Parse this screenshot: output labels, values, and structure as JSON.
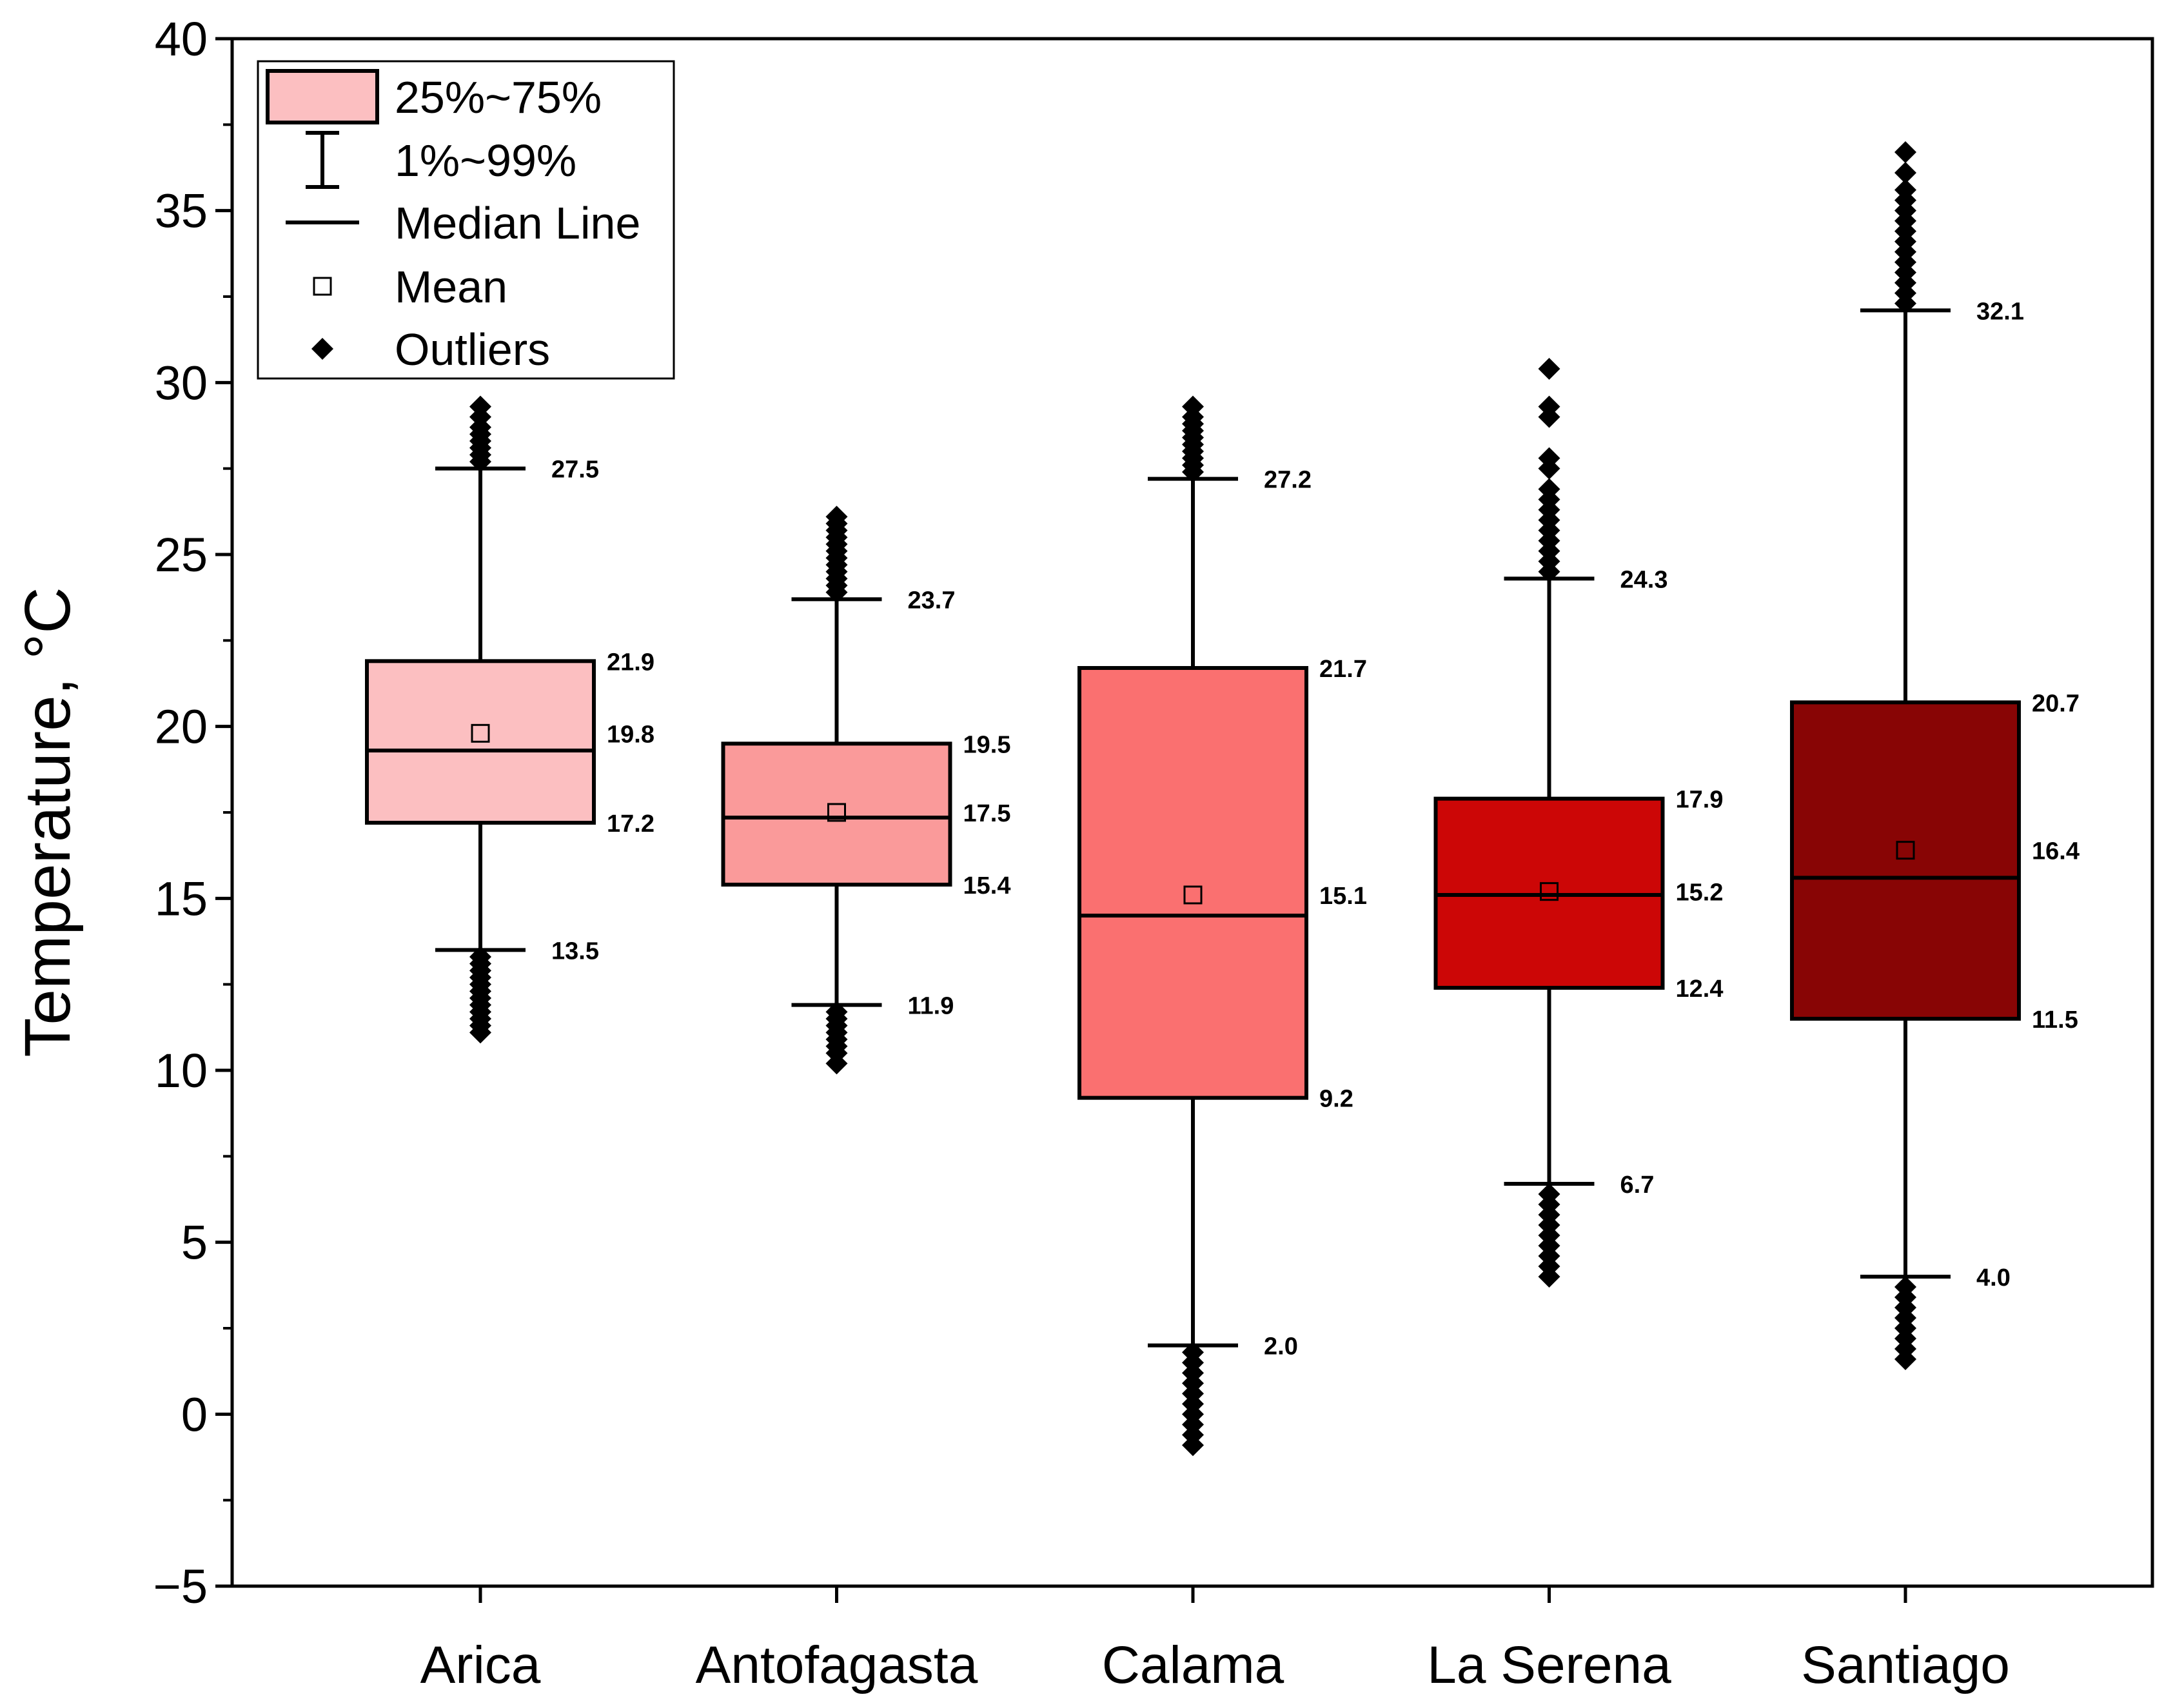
{
  "chart_data": {
    "type": "box",
    "ylabel": "Temperature, °C",
    "xlabel": "",
    "ylim": [
      -5,
      40
    ],
    "yticks": [
      -5,
      0,
      5,
      10,
      15,
      20,
      25,
      30,
      35,
      40
    ],
    "ytick_labels": [
      "−5",
      "0",
      "5",
      "10",
      "15",
      "20",
      "25",
      "30",
      "35",
      "40"
    ],
    "legend": {
      "position": "top-left",
      "entries": [
        {
          "key": "box",
          "label": "25%~75%"
        },
        {
          "key": "whisker",
          "label": "1%~99%"
        },
        {
          "key": "median",
          "label": "Median Line"
        },
        {
          "key": "mean",
          "label": "Mean"
        },
        {
          "key": "outliers",
          "label": "Outliers"
        }
      ]
    },
    "series": [
      {
        "name": "Arica",
        "color": "#FCBFC1",
        "whisker_low": 13.5,
        "q1": 17.2,
        "median": 19.3,
        "mean": 19.8,
        "q3": 21.9,
        "whisker_high": 27.5,
        "outliers_low": [
          13.3,
          13.1,
          12.9,
          12.7,
          12.5,
          12.3,
          12.1,
          11.9,
          11.7,
          11.5,
          11.3,
          11.1
        ],
        "outliers_high": [
          27.7,
          27.9,
          28.1,
          28.3,
          28.5,
          28.7,
          29.0,
          29.3
        ],
        "labels": {
          "whisker_high": "27.5",
          "q3": "21.9",
          "mean": "19.8",
          "q1": "17.2",
          "whisker_low": "13.5"
        }
      },
      {
        "name": "Antofagasta",
        "color": "#FA9A9A",
        "whisker_low": 11.9,
        "q1": 15.4,
        "median": 17.35,
        "mean": 17.5,
        "q3": 19.5,
        "whisker_high": 23.7,
        "outliers_low": [
          11.7,
          11.5,
          11.3,
          11.1,
          10.9,
          10.7,
          10.5,
          10.2
        ],
        "outliers_high": [
          23.9,
          24.1,
          24.3,
          24.5,
          24.7,
          24.9,
          25.1,
          25.3,
          25.5,
          25.7,
          25.9,
          26.1
        ],
        "labels": {
          "whisker_high": "23.7",
          "q3": "19.5",
          "mean": "17.5",
          "q1": "15.4",
          "whisker_low": "11.9"
        }
      },
      {
        "name": "Calama",
        "color": "#FA7070",
        "whisker_low": 2.0,
        "q1": 9.2,
        "median": 14.5,
        "mean": 15.1,
        "q3": 21.7,
        "whisker_high": 27.2,
        "outliers_low": [
          1.8,
          1.5,
          1.2,
          0.9,
          0.6,
          0.3,
          0.0,
          -0.3,
          -0.6,
          -0.9
        ],
        "outliers_high": [
          27.4,
          27.6,
          27.8,
          28.0,
          28.2,
          28.4,
          28.6,
          28.8,
          29.0,
          29.3
        ],
        "labels": {
          "whisker_high": "27.2",
          "q3": "21.7",
          "mean": "15.1",
          "q1": "9.2",
          "whisker_low": "2.0"
        }
      },
      {
        "name": "La Serena",
        "color": "#CC0606",
        "whisker_low": 6.7,
        "q1": 12.4,
        "median": 15.1,
        "mean": 15.2,
        "q3": 17.9,
        "whisker_high": 24.3,
        "outliers_low": [
          6.4,
          6.1,
          5.8,
          5.5,
          5.2,
          4.9,
          4.6,
          4.3,
          4.0
        ],
        "outliers_high": [
          24.5,
          24.8,
          25.1,
          25.4,
          25.7,
          26.0,
          26.3,
          26.6,
          26.9,
          27.5,
          27.8,
          29.0,
          29.3,
          30.4
        ],
        "labels": {
          "whisker_high": "24.3",
          "q3": "17.9",
          "mean": "15.2",
          "q1": "12.4",
          "whisker_low": "6.7"
        }
      },
      {
        "name": "Santiago",
        "color": "#880505",
        "whisker_low": 4.0,
        "q1": 11.5,
        "median": 15.6,
        "mean": 16.4,
        "q3": 20.7,
        "whisker_high": 32.1,
        "outliers_low": [
          3.7,
          3.4,
          3.1,
          2.8,
          2.5,
          2.2,
          1.9,
          1.6
        ],
        "outliers_high": [
          32.3,
          32.6,
          32.9,
          33.2,
          33.5,
          33.8,
          34.1,
          34.4,
          34.7,
          35.0,
          35.3,
          35.6,
          36.1,
          36.7
        ],
        "labels": {
          "whisker_high": "32.1",
          "q3": "20.7",
          "mean": "16.4",
          "q1": "11.5",
          "whisker_low": "4.0"
        }
      }
    ]
  }
}
